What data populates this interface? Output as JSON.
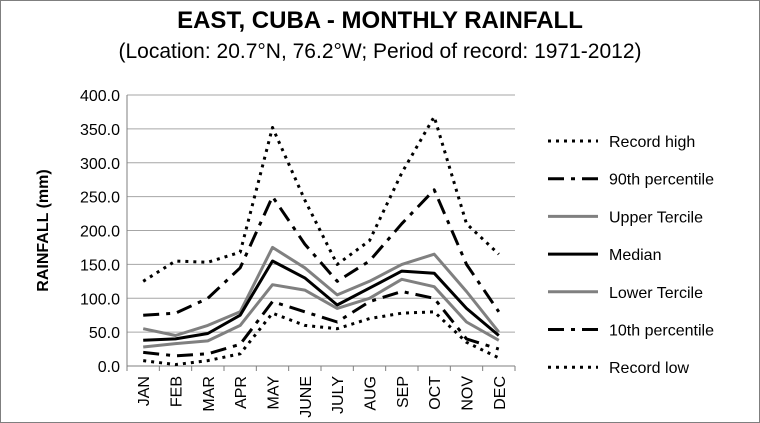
{
  "chart_data": {
    "type": "line",
    "title": "EAST, CUBA - MONTHLY RAINFALL",
    "subtitle": "(Location: 20.7°N, 76.2°W; Period of record: 1971-2012)",
    "xlabel": "",
    "ylabel": "RAINFALL (mm)",
    "ylim": [
      0,
      400
    ],
    "ytick_step": 50,
    "ytick_labels": [
      "0.0",
      "50.0",
      "100.0",
      "150.0",
      "200.0",
      "250.0",
      "300.0",
      "350.0",
      "400.0"
    ],
    "grid": true,
    "legend_position": "right",
    "categories": [
      "JAN",
      "FEB",
      "MAR",
      "APR",
      "MAY",
      "JUNE",
      "JULY",
      "AUG",
      "SEP",
      "OCT",
      "NOV",
      "DEC"
    ],
    "series": [
      {
        "name": "Record high",
        "style": "dotted",
        "color": "#000000",
        "values": [
          125,
          155,
          153,
          168,
          352,
          245,
          150,
          185,
          285,
          368,
          210,
          165
        ]
      },
      {
        "name": "90th percentile",
        "style": "dashdot",
        "color": "#000000",
        "values": [
          75,
          78,
          100,
          145,
          250,
          180,
          125,
          155,
          210,
          260,
          150,
          80
        ]
      },
      {
        "name": "Upper Tercile",
        "style": "solid",
        "color": "#808080",
        "values": [
          55,
          45,
          60,
          80,
          175,
          145,
          105,
          125,
          150,
          165,
          110,
          50
        ]
      },
      {
        "name": "Median",
        "style": "solid",
        "color": "#000000",
        "values": [
          38,
          40,
          48,
          75,
          155,
          130,
          90,
          115,
          140,
          137,
          85,
          45
        ]
      },
      {
        "name": "Lower Tercile",
        "style": "solid",
        "color": "#808080",
        "values": [
          28,
          33,
          37,
          60,
          120,
          112,
          85,
          100,
          128,
          117,
          65,
          38
        ]
      },
      {
        "name": "10th percentile",
        "style": "dashdot",
        "color": "#000000",
        "values": [
          20,
          15,
          18,
          32,
          95,
          80,
          65,
          95,
          110,
          100,
          40,
          25
        ]
      },
      {
        "name": "Record low",
        "style": "dotted",
        "color": "#000000",
        "values": [
          8,
          2,
          8,
          18,
          78,
          60,
          55,
          70,
          78,
          80,
          35,
          12
        ]
      }
    ]
  }
}
